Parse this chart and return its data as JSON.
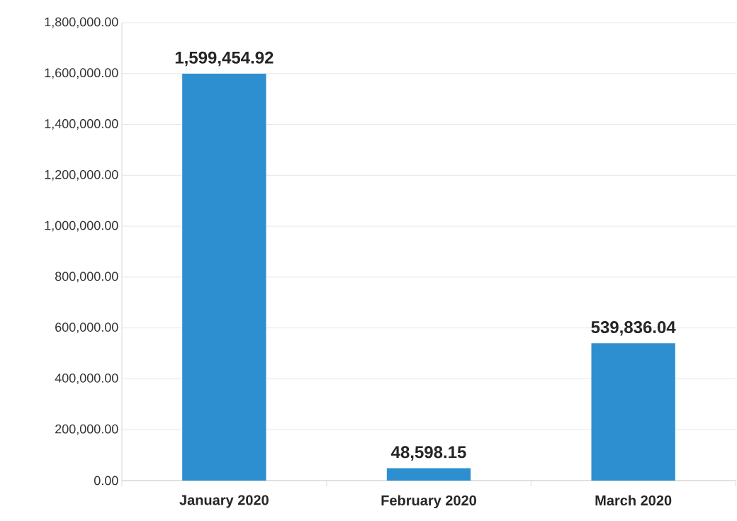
{
  "chart_data": {
    "type": "bar",
    "categories": [
      "January 2020",
      "February 2020",
      "March 2020"
    ],
    "values": [
      1599454.92,
      48598.15,
      539836.04
    ],
    "value_labels": [
      "1,599,454.92",
      "48,598.15",
      "539,836.04"
    ],
    "color": "#2e8fd0",
    "ylim": [
      0,
      1800000
    ],
    "yticks": [
      {
        "value": 0,
        "label": "0.00"
      },
      {
        "value": 200000,
        "label": "200,000.00"
      },
      {
        "value": 400000,
        "label": "400,000.00"
      },
      {
        "value": 600000,
        "label": "600,000.00"
      },
      {
        "value": 800000,
        "label": "800,000.00"
      },
      {
        "value": 1000000,
        "label": "1,000,000.00"
      },
      {
        "value": 1200000,
        "label": "1,200,000.00"
      },
      {
        "value": 1400000,
        "label": "1,400,000.00"
      },
      {
        "value": 1600000,
        "label": "1,600,000.00"
      },
      {
        "value": 1800000,
        "label": "1,800,000.00"
      }
    ],
    "grid": "y"
  }
}
